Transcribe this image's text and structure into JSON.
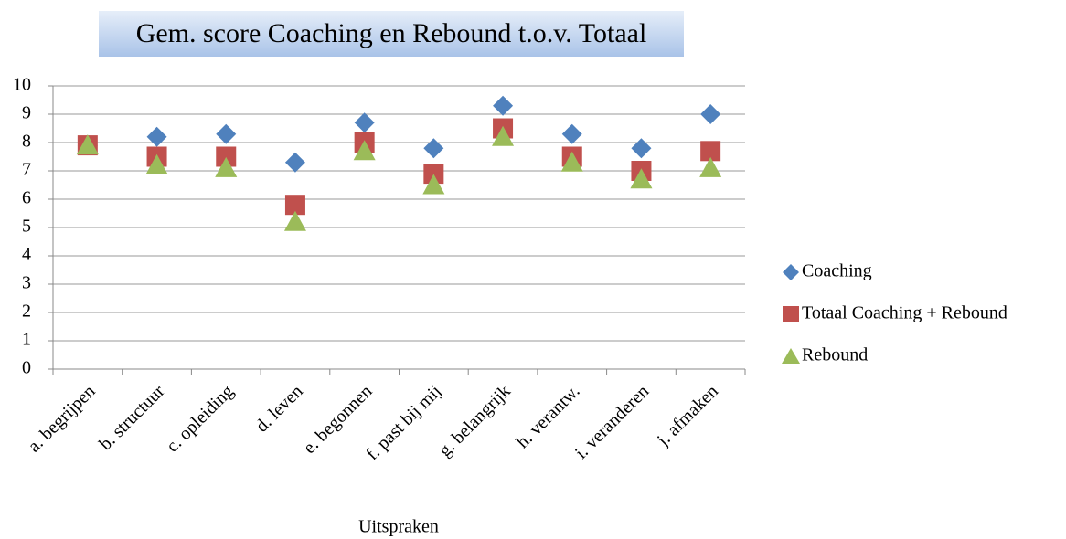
{
  "chart_data": {
    "type": "scatter",
    "title": "Gem. score Coaching en Rebound t.o.v. Totaal",
    "x_label": "Uitspraken",
    "categories": [
      "a. begrijpen",
      "b. structuur",
      "c. opleiding",
      "d. leven",
      "e. begonnen",
      "f. past bij mij",
      "g. belangrijk",
      "h. verantw.",
      "i. veranderen",
      "j. afmaken"
    ],
    "series": [
      {
        "name": "Coaching",
        "color": "#4f81bd",
        "marker": "diamond",
        "values": [
          7.9,
          8.2,
          8.3,
          7.3,
          8.7,
          7.8,
          9.3,
          8.3,
          7.8,
          9.0
        ]
      },
      {
        "name": "Totaal Coaching + Rebound",
        "color": "#c0504d",
        "marker": "square",
        "values": [
          7.9,
          7.5,
          7.5,
          5.8,
          8.0,
          6.9,
          8.5,
          7.5,
          7.0,
          7.7
        ]
      },
      {
        "name": "Rebound",
        "color": "#9bbb59",
        "marker": "triangle",
        "values": [
          7.9,
          7.2,
          7.1,
          5.2,
          7.7,
          6.5,
          8.2,
          7.3,
          6.7,
          7.1
        ]
      }
    ],
    "ylim": [
      0,
      10
    ],
    "yticks": [
      0,
      1,
      2,
      3,
      4,
      5,
      6,
      7,
      8,
      9,
      10
    ],
    "grid": true,
    "legend": "right"
  }
}
